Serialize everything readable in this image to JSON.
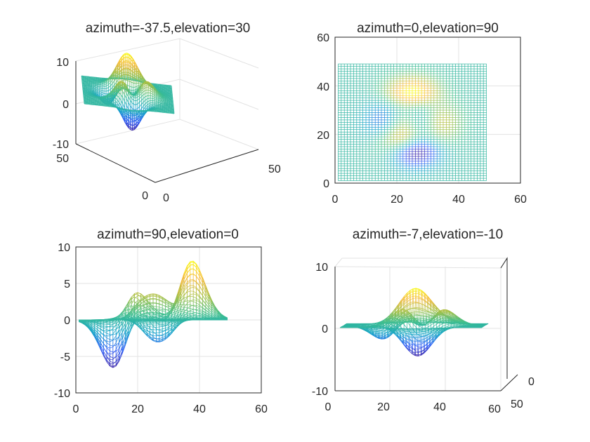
{
  "chart_data": [
    {
      "type": "surface-mesh",
      "title": "azimuth=-37.5,elevation=30",
      "view": {
        "azimuth": -37.5,
        "elevation": 30
      },
      "xlim": [
        0,
        50
      ],
      "ylim": [
        0,
        50
      ],
      "zlim": [
        -10,
        10
      ],
      "x_ticks": [
        "0",
        "50"
      ],
      "y_ticks": [
        "0",
        "50"
      ],
      "z_ticks": [
        "-10",
        "0",
        "10"
      ],
      "grid": true
    },
    {
      "type": "surface-mesh",
      "title": "azimuth=0,elevation=90",
      "view": {
        "azimuth": 0,
        "elevation": 90
      },
      "xlim": [
        0,
        60
      ],
      "ylim": [
        0,
        60
      ],
      "x_ticks": [
        "0",
        "20",
        "40",
        "60"
      ],
      "y_ticks": [
        "0",
        "20",
        "40",
        "60"
      ],
      "grid": true
    },
    {
      "type": "surface-mesh",
      "title": "azimuth=90,elevation=0",
      "view": {
        "azimuth": 90,
        "elevation": 0
      },
      "xlim": [
        0,
        60
      ],
      "zlim": [
        -10,
        10
      ],
      "x_ticks": [
        "0",
        "20",
        "40",
        "60"
      ],
      "z_ticks": [
        "-10",
        "-5",
        "0",
        "5",
        "10"
      ],
      "grid": true
    },
    {
      "type": "surface-mesh",
      "title": "azimuth=-7,elevation=-10",
      "view": {
        "azimuth": -7,
        "elevation": -10
      },
      "xlim": [
        0,
        60
      ],
      "ylim": [
        0,
        50
      ],
      "zlim": [
        -10,
        10
      ],
      "x_ticks": [
        "0",
        "20",
        "40",
        "60"
      ],
      "y_ticks": [
        "0",
        "50"
      ],
      "z_ticks": [
        "-10",
        "0",
        "10"
      ],
      "grid": true
    }
  ],
  "surface": {
    "function": "peaks",
    "grid_points": 49,
    "z_range": [
      -6.55,
      8.1
    ],
    "colormap": [
      "#3e26a8",
      "#2e5ef6",
      "#14a4c8",
      "#3ebe8e",
      "#a8c044",
      "#f5b93a",
      "#f9fb15"
    ]
  }
}
